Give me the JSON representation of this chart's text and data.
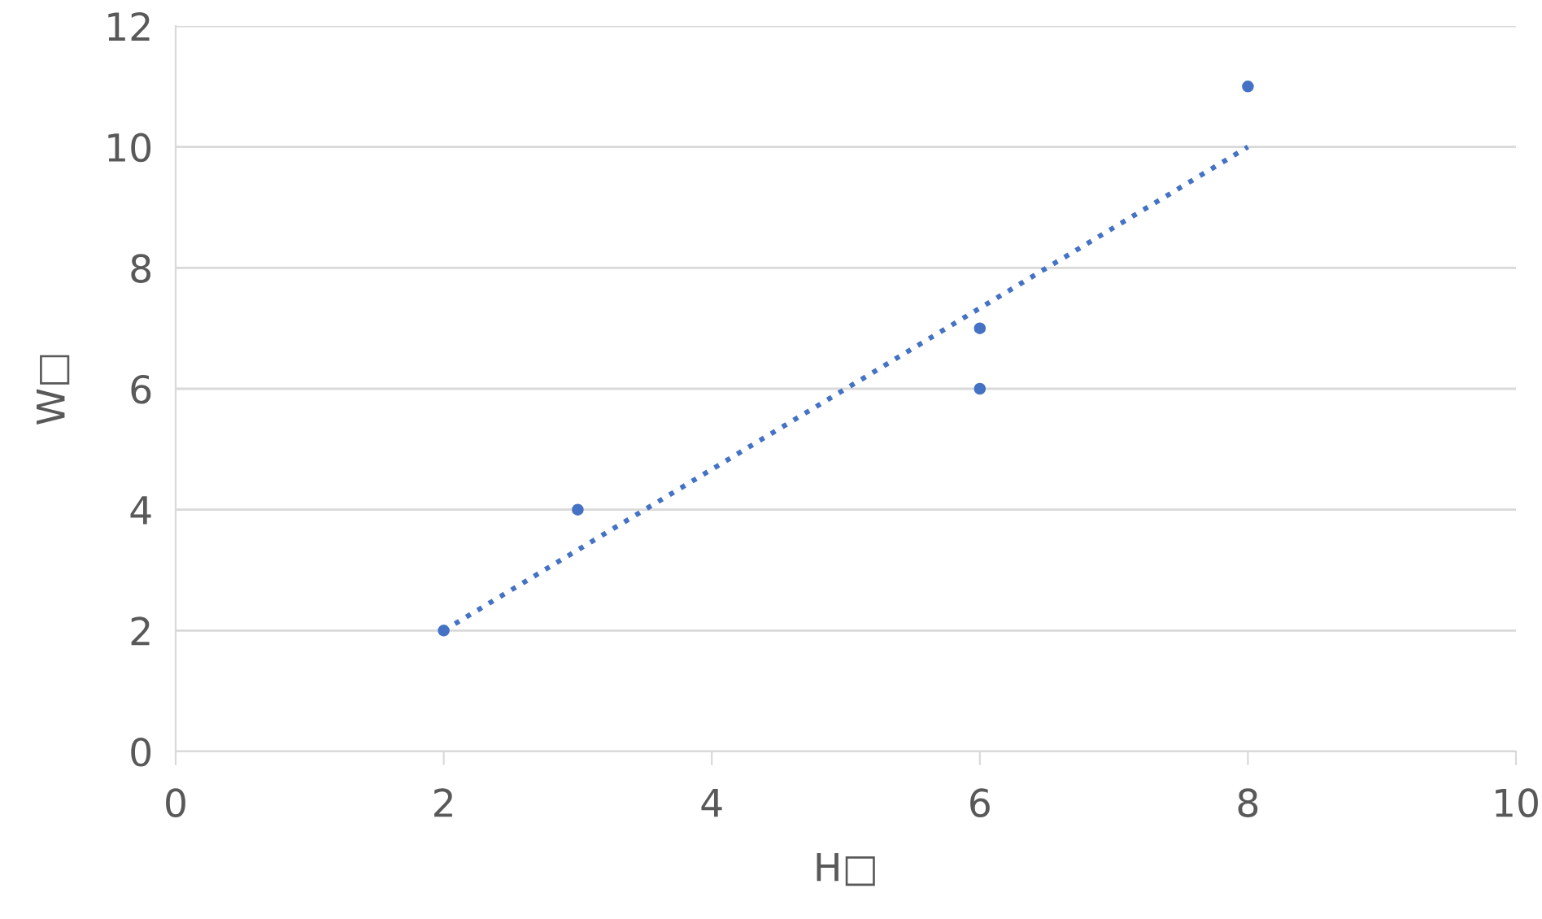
{
  "chart_data": {
    "type": "scatter",
    "xlabel": "H□",
    "ylabel": "W□",
    "marker": "circle",
    "grid": "y",
    "legend": false,
    "xlim": [
      0,
      10
    ],
    "xticks": [
      0,
      2,
      4,
      6,
      8,
      10
    ],
    "ylim": [
      0,
      12
    ],
    "yticks": [
      0,
      2,
      4,
      6,
      8,
      10,
      12
    ],
    "series": [
      {
        "color": "#4472c4",
        "x": [
          2,
          3,
          6,
          6,
          8
        ],
        "values": [
          2,
          4,
          7,
          6,
          11
        ]
      },
      {
        "type": "line",
        "color": "#4472c4",
        "line_style": "dotted",
        "marker": "none",
        "x": [
          2,
          8
        ],
        "values": [
          2,
          10
        ]
      }
    ]
  }
}
